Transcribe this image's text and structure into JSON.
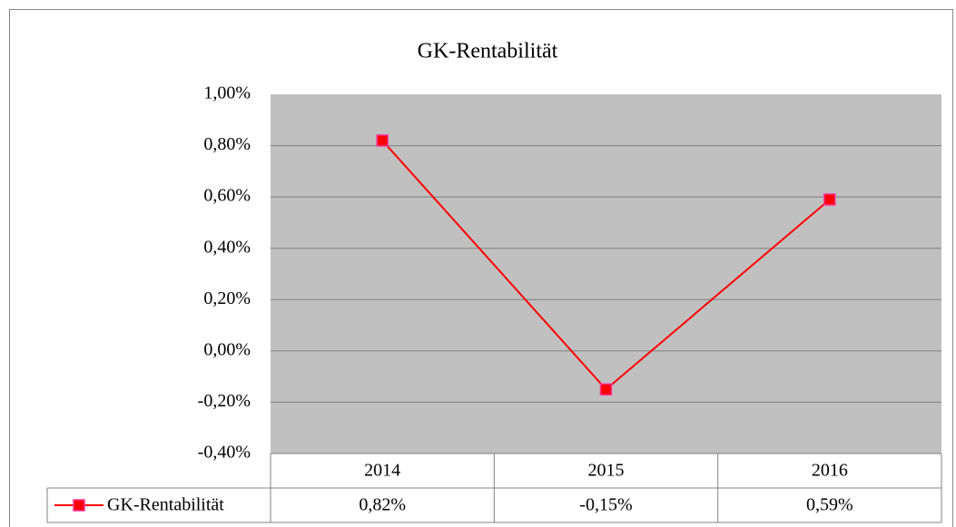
{
  "chart_data": {
    "type": "line",
    "title": "GK-Rentabilität",
    "categories": [
      "2014",
      "2015",
      "2016"
    ],
    "series": [
      {
        "name": "GK-Rentabilität",
        "color": "#ff0000",
        "marker_edge": "#ff3399",
        "values": [
          0.82,
          -0.15,
          0.59
        ],
        "value_labels": [
          "0,82%",
          "-0,15%",
          "0,59%"
        ]
      }
    ],
    "ylim": [
      -0.4,
      1.0
    ],
    "yticks": [
      {
        "value": -0.4,
        "label": "-0,40%"
      },
      {
        "value": -0.2,
        "label": "-0,20%"
      },
      {
        "value": 0,
        "label": "0,00%"
      },
      {
        "value": 0.2,
        "label": "0,20%"
      },
      {
        "value": 0.4,
        "label": "0,40%"
      },
      {
        "value": 0.6,
        "label": "0,60%"
      },
      {
        "value": 0.8,
        "label": "0,80%"
      },
      {
        "value": 1.0,
        "label": "1,00%"
      }
    ],
    "grid": true,
    "data_table": true
  }
}
